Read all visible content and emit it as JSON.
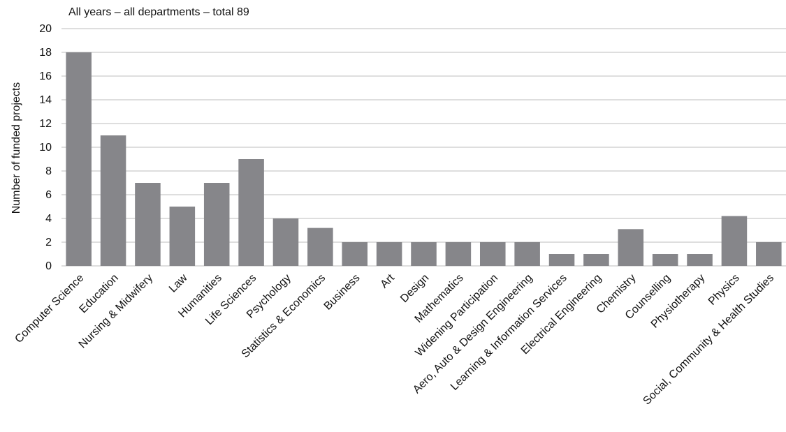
{
  "chart_data": {
    "type": "bar",
    "title": "All years – all departments – total 89",
    "xlabel": "",
    "ylabel": "Number of funded projects",
    "ylim": [
      0,
      20
    ],
    "yticks": [
      0,
      2,
      4,
      6,
      8,
      10,
      12,
      14,
      16,
      18,
      20
    ],
    "grid": true,
    "legend": "none",
    "bar_color": "#86868a",
    "categories": [
      "Computer Science",
      "Education",
      "Nursing & Midwifery",
      "Law",
      "Humanities",
      "Life Sciences",
      "Psychology",
      "Statistics & Economics",
      "Business",
      "Art",
      "Design",
      "Mathematics",
      "Widening Participation",
      "Aero, Auto & Design  Engineering",
      "Learning & Information Services",
      "Electrical Engineering",
      "Chemistry",
      "Counselling",
      "Physiotherapy",
      "Physics",
      "Social, Community & Health Studies"
    ],
    "values": [
      18,
      11,
      7,
      5,
      7,
      9,
      4,
      3.2,
      2,
      2,
      2,
      2,
      2,
      2,
      1,
      1,
      3.1,
      1,
      1,
      4.2,
      2
    ]
  }
}
